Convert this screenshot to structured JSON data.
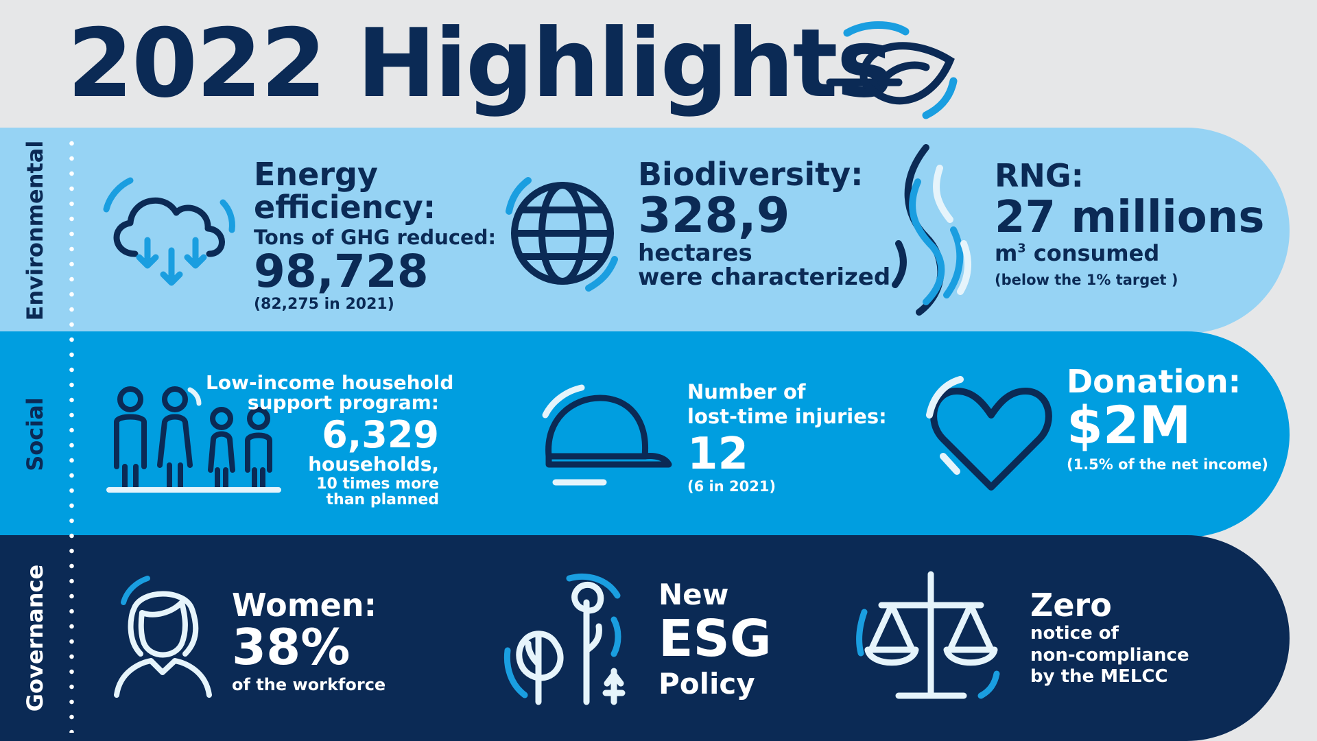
{
  "title": "2022 Highlights",
  "colors": {
    "navy": "#0b2a55",
    "light_blue": "#96d3f4",
    "mid_blue": "#009ee0",
    "accent_blue": "#1a9ee0",
    "background": "#e6e7e8"
  },
  "sections": {
    "environmental": {
      "label": "Environmental",
      "energy": {
        "icon": "cloud-download-icon",
        "line1": "Energy",
        "line2": "efficiency:",
        "sub": "Tons of GHG reduced:",
        "value": "98,728",
        "note": "(82,275 in 2021)"
      },
      "biodiversity": {
        "icon": "globe-icon",
        "title": "Biodiversity:",
        "value": "328,9",
        "line1": "hectares",
        "line2": "were characterized"
      },
      "rng": {
        "icon": "gas-flow-icon",
        "title": "RNG:",
        "value": "27 millions",
        "unit": "m",
        "unit_sup": "3",
        "unit_rest": " consumed",
        "note": "(below the 1% target )"
      }
    },
    "social": {
      "label": "Social",
      "household": {
        "icon": "family-icon",
        "line1": "Low-income household",
        "line2": "support program:",
        "value": "6,329",
        "line3": "households,",
        "line4": "10 times more",
        "line5": "than planned"
      },
      "injuries": {
        "icon": "hard-hat-icon",
        "line1": "Number of",
        "line2": "lost-time injuries:",
        "value": "12",
        "note": "(6 in 2021)"
      },
      "donation": {
        "icon": "heart-icon",
        "title": "Donation:",
        "value": "$2M",
        "note": "(1.5% of the net income)"
      }
    },
    "governance": {
      "label": "Governance",
      "women": {
        "icon": "woman-icon",
        "title": "Women:",
        "value": "38%",
        "note": "of the workforce"
      },
      "esg": {
        "icon": "trees-icon",
        "line1": "New",
        "line2": "ESG",
        "line3": "Policy"
      },
      "compliance": {
        "icon": "scales-icon",
        "title": "Zero",
        "line1": "notice of",
        "line2": "non-compliance",
        "line3": "by the MELCC"
      }
    }
  }
}
